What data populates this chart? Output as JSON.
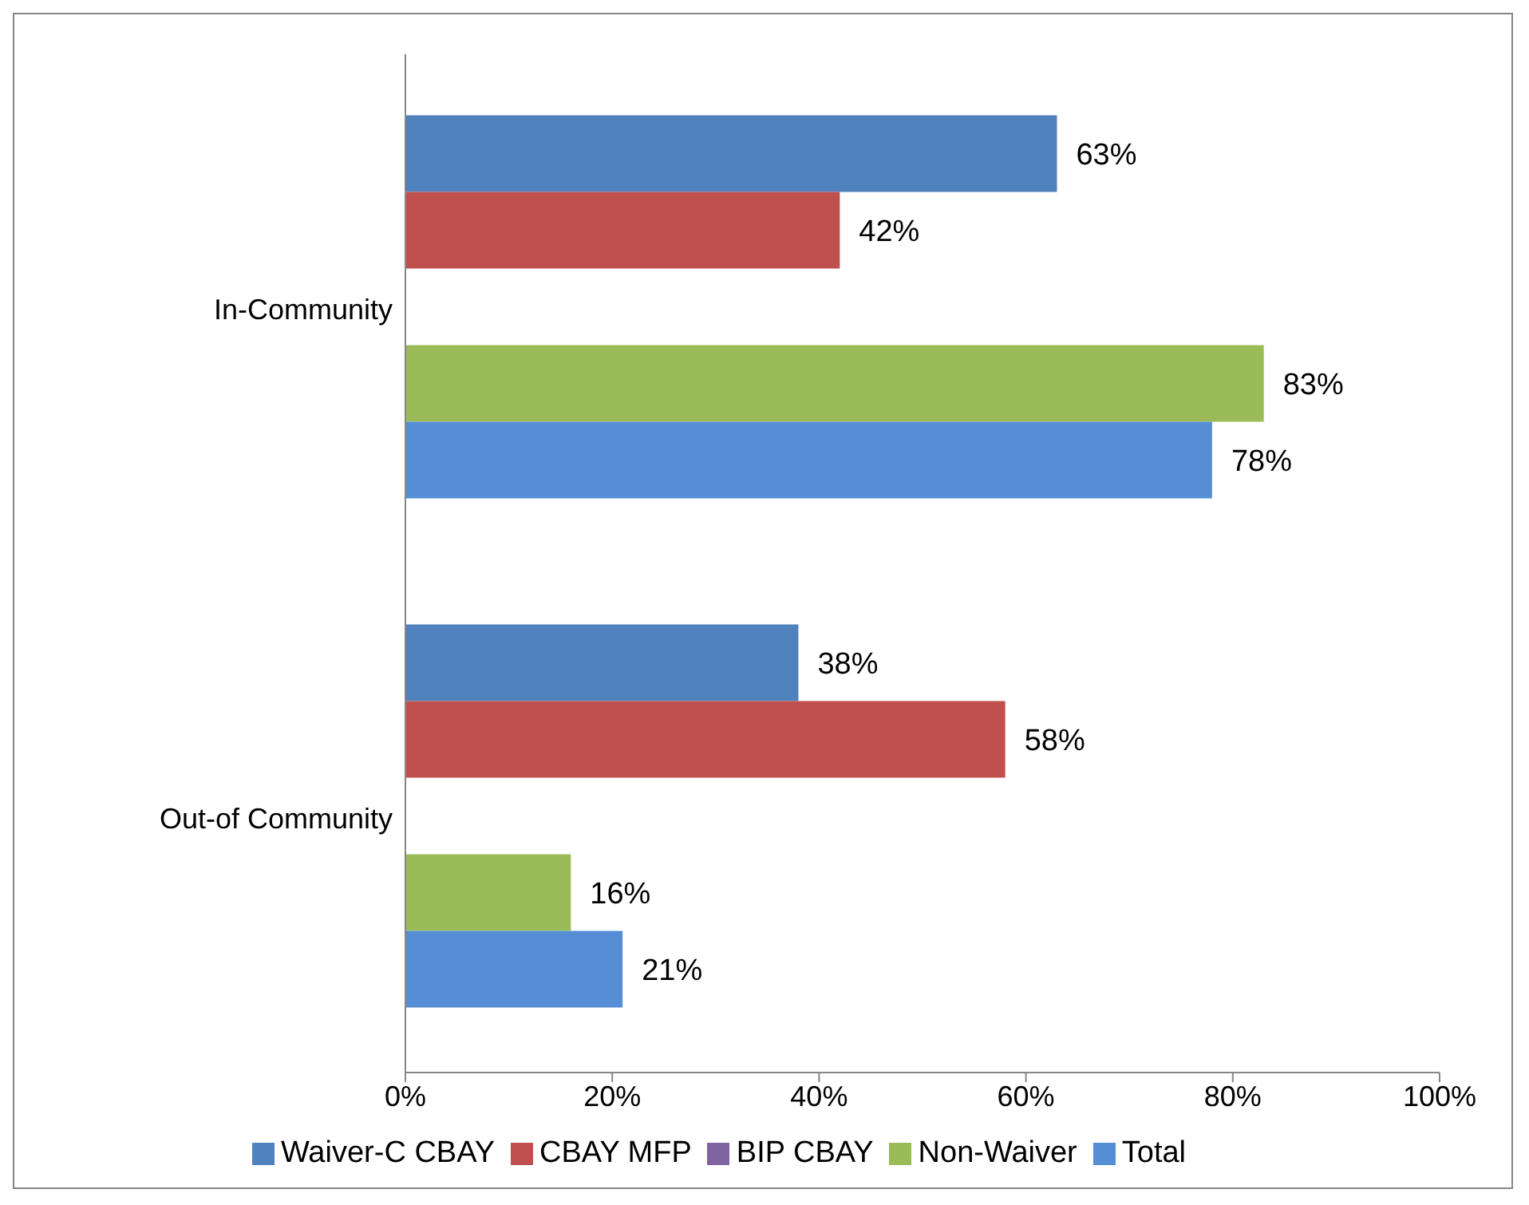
{
  "chart_data": {
    "type": "bar",
    "orientation": "horizontal",
    "categories": [
      "In-Community",
      "Out-of Community"
    ],
    "series": [
      {
        "name": "Waiver-C CBAY",
        "color": "#4f81bd",
        "values": [
          63,
          38
        ],
        "value_labels": [
          "63%",
          "38%"
        ]
      },
      {
        "name": "CBAY MFP",
        "color": "#c0504d",
        "values": [
          42,
          58
        ],
        "value_labels": [
          "42%",
          "58%"
        ]
      },
      {
        "name": "BIP CBAY",
        "color": "#8064a2",
        "values": [
          null,
          null
        ],
        "value_labels": [
          null,
          null
        ]
      },
      {
        "name": "Non-Waiver",
        "color": "#9bbb59",
        "values": [
          83,
          16
        ],
        "value_labels": [
          "83%",
          "16%"
        ]
      },
      {
        "name": "Total",
        "color": "#558ed5",
        "values": [
          78,
          21
        ],
        "value_labels": [
          "78%",
          "21%"
        ]
      }
    ],
    "xlim": [
      0,
      100
    ],
    "xticks": [
      {
        "value": 0,
        "label": "0%"
      },
      {
        "value": 20,
        "label": "20%"
      },
      {
        "value": 40,
        "label": "40%"
      },
      {
        "value": 60,
        "label": "60%"
      },
      {
        "value": 80,
        "label": "80%"
      },
      {
        "value": 100,
        "label": "100%"
      }
    ],
    "grid": false,
    "legend": "bottom"
  }
}
